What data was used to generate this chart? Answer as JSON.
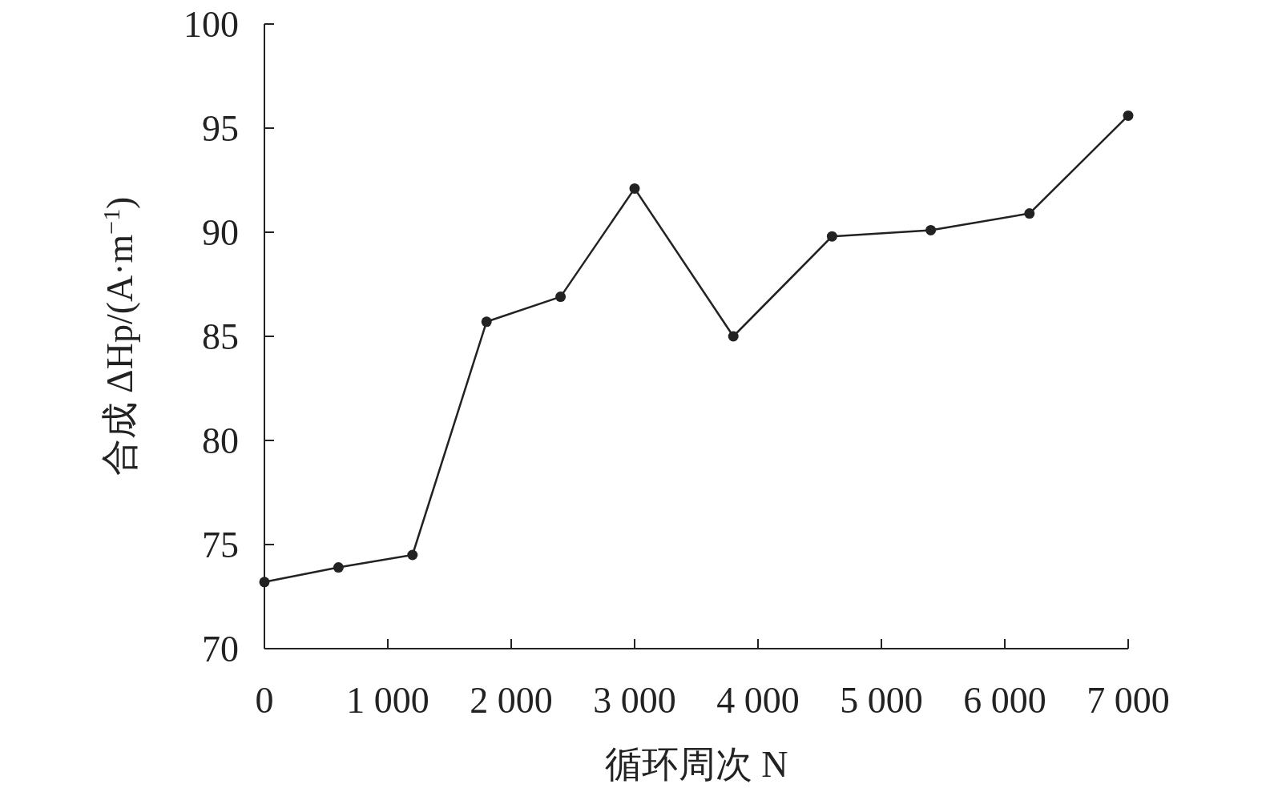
{
  "chart_data": {
    "type": "line",
    "xlabel": "循环周次 N",
    "ylabel": "合成 ΔHp/(A·m$^{−1}$)",
    "x": [
      0,
      600,
      1200,
      1800,
      2400,
      3000,
      3800,
      4600,
      5400,
      6200,
      7000
    ],
    "series": [
      {
        "color": "#222222",
        "values": [
          73.2,
          73.9,
          74.5,
          85.7,
          86.9,
          92.1,
          85.0,
          89.8,
          90.1,
          90.9,
          95.6
        ]
      }
    ],
    "xlim": [
      0,
      7000
    ],
    "ylim": [
      70,
      100
    ],
    "xticks": [
      0,
      {
        "value": 1000,
        "label": "1 000"
      },
      {
        "value": 2000,
        "label": "2 000"
      },
      {
        "value": 3000,
        "label": "3 000"
      },
      {
        "value": 4000,
        "label": "4 000"
      },
      {
        "value": 5000,
        "label": "5 000"
      },
      {
        "value": 6000,
        "label": "6 000"
      },
      {
        "value": 7000,
        "label": "7 000"
      }
    ],
    "yticks": [
      70,
      75,
      80,
      85,
      90,
      95,
      100
    ],
    "marker": "circle",
    "line_style": "solid",
    "grid": false
  }
}
